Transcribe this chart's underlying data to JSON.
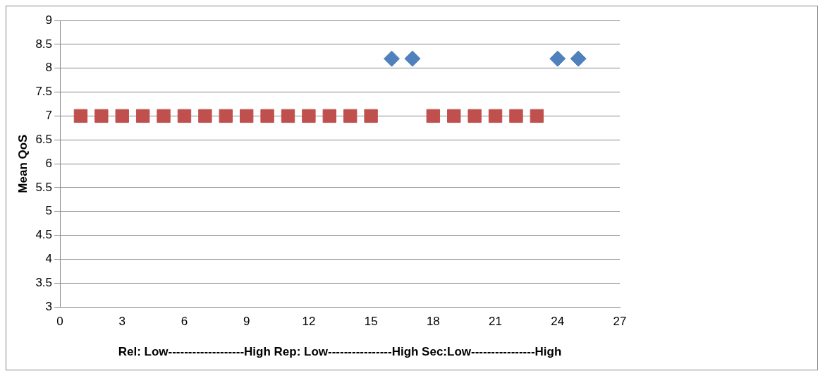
{
  "chart_data": {
    "type": "scatter",
    "ylabel": "Mean QoS",
    "xlabel": "Rel: Low-------------------High Rep: Low----------------High Sec:Low----------------High",
    "xlim": [
      0,
      27
    ],
    "xticks": [
      0,
      3,
      6,
      9,
      12,
      15,
      18,
      21,
      24,
      27
    ],
    "ylim": [
      3,
      9
    ],
    "yticks": [
      3,
      3.5,
      4,
      4.5,
      5,
      5.5,
      6,
      6.5,
      7,
      7.5,
      8,
      8.5,
      9
    ],
    "grid": "y",
    "series": [
      {
        "color": "#4f81bd",
        "marker": "diamond",
        "x": [
          16,
          17,
          24,
          25
        ],
        "values": [
          8.2,
          8.2,
          8.2,
          8.2
        ]
      },
      {
        "color": "#c0504d",
        "marker": "square",
        "x": [
          1,
          2,
          3,
          4,
          5,
          6,
          7,
          8,
          9,
          10,
          11,
          12,
          13,
          14,
          15,
          18,
          19,
          20,
          21,
          22,
          23
        ],
        "values": [
          7,
          7,
          7,
          7,
          7,
          7,
          7,
          7,
          7,
          7,
          7,
          7,
          7,
          7,
          7,
          7,
          7,
          7,
          7,
          7,
          7
        ]
      }
    ]
  }
}
